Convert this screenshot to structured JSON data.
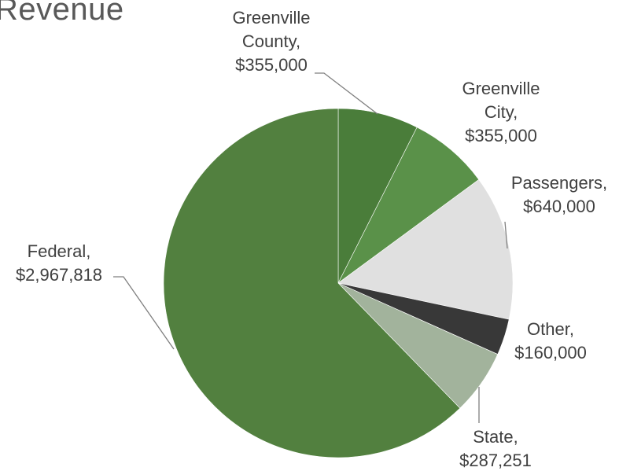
{
  "chart_data": {
    "type": "pie",
    "title": "Revenue",
    "slices": [
      {
        "label": "Greenville County",
        "value": 355000,
        "label_lines": [
          "Greenville",
          "County,",
          "$355,000"
        ],
        "color": "#4a7d3a"
      },
      {
        "label": "Greenville City",
        "value": 355000,
        "label_lines": [
          "Greenville",
          "City,",
          "$355,000"
        ],
        "color": "#5a9149"
      },
      {
        "label": "Passengers",
        "value": 640000,
        "label_lines": [
          "Passengers,",
          "$640,000"
        ],
        "color": "#e0e0e0"
      },
      {
        "label": "Other",
        "value": 160000,
        "label_lines": [
          "Other,",
          "$160,000"
        ],
        "color": "#383838"
      },
      {
        "label": "State",
        "value": 287251,
        "label_lines": [
          "State,",
          "$287,251"
        ],
        "color": "#a2b39c"
      },
      {
        "label": "Federal",
        "value": 2967818,
        "label_lines": [
          "Federal,",
          "$2,967,818"
        ],
        "color": "#52803f"
      }
    ]
  }
}
